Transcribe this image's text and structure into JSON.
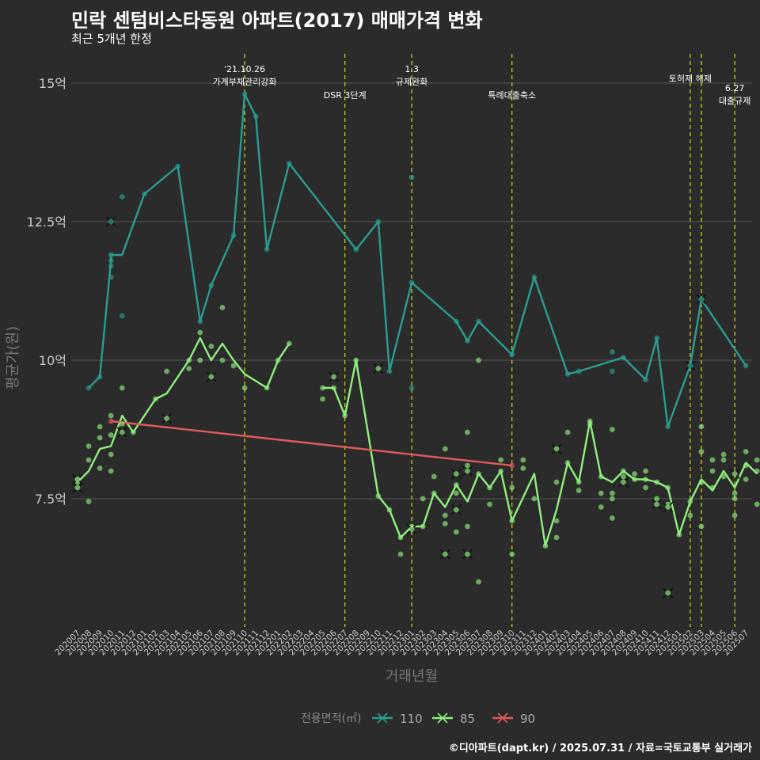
{
  "title": "민락 센텀비스타동원 아파트(2017) 매매가격 변화",
  "subtitle": "최근 5개년 한정",
  "caption": "©디아파트(dapt.kr) / 2025.07.31 / 자료=국토교통부 실거래가",
  "chart_data": {
    "type": "line",
    "xlabel": "거래년월",
    "ylabel": "평균가(원)",
    "ylim": [
      5.3,
      15.8
    ],
    "yticks": [
      {
        "value": 7.5,
        "label": "7.5억"
      },
      {
        "value": 10,
        "label": "10억"
      },
      {
        "value": 12.5,
        "label": "12.5억"
      },
      {
        "value": 15,
        "label": "15억"
      }
    ],
    "categories": [
      "202007",
      "202008",
      "202009",
      "202010",
      "202011",
      "202012",
      "202101",
      "202102",
      "202103",
      "202104",
      "202105",
      "202106",
      "202107",
      "202108",
      "202109",
      "202110",
      "202111",
      "202112",
      "202201",
      "202202",
      "202203",
      "202204",
      "202205",
      "202206",
      "202207",
      "202208",
      "202209",
      "202210",
      "202211",
      "202212",
      "202301",
      "202302",
      "202303",
      "202304",
      "202305",
      "202306",
      "202307",
      "202308",
      "202309",
      "202310",
      "202311",
      "202312",
      "202401",
      "202402",
      "202403",
      "202404",
      "202405",
      "202406",
      "202407",
      "202408",
      "202409",
      "202410",
      "202411",
      "202412",
      "202501",
      "202502",
      "202503",
      "202504",
      "202505",
      "202506",
      "202507"
    ],
    "legend": {
      "title": "전용면적(㎡)",
      "position": "bottom"
    },
    "grid": true,
    "events": [
      {
        "date": "202110",
        "label": "'21.10.26\n가계부채관리강화",
        "pos": "top"
      },
      {
        "date": "202207",
        "label": "DSR 3단계",
        "pos": "low"
      },
      {
        "date": "202301",
        "label": "1.3\n규제완화",
        "pos": "top"
      },
      {
        "date": "202310",
        "label": "특례대출축소",
        "pos": "low"
      },
      {
        "date": "202502",
        "label": "토허제 해제",
        "pos": "mid"
      },
      {
        "date": "202503",
        "label": "",
        "pos": "mid"
      },
      {
        "date": "202506",
        "label": "6.27\n대출규제",
        "pos": "low2"
      }
    ],
    "series": [
      {
        "name": "110",
        "color": "#2a9d8f",
        "line": [
          [
            "202008",
            9.5
          ],
          [
            "202009",
            9.7
          ],
          [
            "202010",
            11.8
          ],
          [
            "202010",
            11.9
          ],
          [
            "202011",
            11.9
          ],
          [
            "202101",
            13.0
          ],
          [
            "202104",
            13.5
          ],
          [
            "202106",
            10.7
          ],
          [
            "202107",
            11.35
          ],
          [
            "202109",
            12.25
          ],
          [
            "202110",
            14.8
          ],
          [
            "202111",
            14.4
          ],
          [
            "202112",
            12.0
          ],
          [
            "202202",
            13.55
          ],
          [
            "202208",
            12.0
          ],
          [
            "202210",
            12.5
          ],
          [
            "202211",
            9.8
          ],
          [
            "202301",
            11.4
          ],
          [
            "202305",
            10.7
          ],
          [
            "202306",
            10.35
          ],
          [
            "202307",
            10.7
          ],
          [
            "202310",
            10.1
          ],
          [
            "202312",
            11.5
          ],
          [
            "202403",
            9.75
          ],
          [
            "202404",
            9.8
          ],
          [
            "202408",
            10.05
          ],
          [
            "202410",
            9.65
          ],
          [
            "202411",
            10.4
          ],
          [
            "202412",
            8.8
          ],
          [
            "202502",
            9.9
          ],
          [
            "202503",
            11.1
          ],
          [
            "202507",
            9.9
          ]
        ],
        "points": [
          [
            "202008",
            9.5
          ],
          [
            "202009",
            9.7
          ],
          [
            "202010",
            11.8
          ],
          [
            "202010",
            11.7
          ],
          [
            "202010",
            11.5
          ],
          [
            "202010",
            11.9
          ],
          [
            "202011",
            12.95
          ],
          [
            "202011",
            10.8
          ],
          [
            "202101",
            13.0
          ],
          [
            "202104",
            13.5
          ],
          [
            "202106",
            10.7
          ],
          [
            "202107",
            11.35
          ],
          [
            "202109",
            12.25
          ],
          [
            "202110",
            14.8
          ],
          [
            "202111",
            14.4
          ],
          [
            "202112",
            12.0
          ],
          [
            "202202",
            13.55
          ],
          [
            "202208",
            12.0
          ],
          [
            "202210",
            12.5
          ],
          [
            "202211",
            9.8
          ],
          [
            "202301",
            13.3
          ],
          [
            "202301",
            9.5
          ],
          [
            "202301",
            11.4
          ],
          [
            "202305",
            10.7
          ],
          [
            "202306",
            10.35
          ],
          [
            "202307",
            10.7
          ],
          [
            "202310",
            10.1
          ],
          [
            "202312",
            11.5
          ],
          [
            "202403",
            9.75
          ],
          [
            "202404",
            9.8
          ],
          [
            "202407",
            10.15
          ],
          [
            "202407",
            9.8
          ],
          [
            "202408",
            10.05
          ],
          [
            "202410",
            9.65
          ],
          [
            "202411",
            10.4
          ],
          [
            "202412",
            8.8
          ],
          [
            "202502",
            9.9
          ],
          [
            "202503",
            11.1
          ],
          [
            "202507",
            9.9
          ]
        ],
        "crosses": [
          [
            "202010",
            12.5
          ],
          [
            "202502",
            9.9
          ],
          [
            "202503",
            11.1
          ]
        ]
      },
      {
        "name": "85",
        "color": "#90ee7e",
        "line": [
          [
            "202007",
            7.8
          ],
          [
            "202008",
            8.0
          ],
          [
            "202009",
            8.4
          ],
          [
            "202010",
            8.45
          ],
          [
            "202011",
            9.0
          ],
          [
            "202012",
            8.7
          ],
          [
            "202102",
            9.3
          ],
          [
            "202103",
            9.4
          ],
          [
            "202105",
            10.0
          ],
          [
            "202106",
            10.4
          ],
          [
            "202107",
            10.0
          ],
          [
            "202108",
            10.3
          ],
          [
            "202109",
            10.0
          ],
          [
            "202110",
            9.75
          ],
          [
            "202112",
            9.5
          ],
          [
            "202201",
            10.0
          ],
          [
            "202202",
            10.3
          ]
        ],
        "line2": [
          [
            "202205",
            9.5
          ],
          [
            "202206",
            9.5
          ],
          [
            "202207",
            9.0
          ],
          [
            "202208",
            10.0
          ],
          [
            "202210",
            7.55
          ],
          [
            "202211",
            7.3
          ],
          [
            "202212",
            6.8
          ],
          [
            "202301",
            7.0
          ],
          [
            "202302",
            7.0
          ],
          [
            "202303",
            7.6
          ],
          [
            "202304",
            7.35
          ],
          [
            "202305",
            7.75
          ],
          [
            "202306",
            7.45
          ],
          [
            "202307",
            7.95
          ],
          [
            "202308",
            7.7
          ],
          [
            "202309",
            8.0
          ],
          [
            "202310",
            7.1
          ],
          [
            "202312",
            7.95
          ],
          [
            "202401",
            6.65
          ],
          [
            "202402",
            7.3
          ],
          [
            "202403",
            8.15
          ],
          [
            "202404",
            7.8
          ],
          [
            "202405",
            8.9
          ],
          [
            "202406",
            7.9
          ],
          [
            "202407",
            7.8
          ],
          [
            "202408",
            8.0
          ],
          [
            "202409",
            7.85
          ],
          [
            "202410",
            7.85
          ],
          [
            "202411",
            7.8
          ],
          [
            "202412",
            7.7
          ],
          [
            "202501",
            6.85
          ],
          [
            "202502",
            7.45
          ],
          [
            "202503",
            7.85
          ],
          [
            "202504",
            7.65
          ],
          [
            "202505",
            8.0
          ],
          [
            "202506",
            7.7
          ],
          [
            "202507",
            8.15
          ],
          [
            "202508",
            7.95
          ]
        ],
        "points": [
          [
            "202007",
            7.8
          ],
          [
            "202007",
            7.85
          ],
          [
            "202008",
            7.45
          ],
          [
            "202008",
            8.2
          ],
          [
            "202008",
            8.45
          ],
          [
            "202009",
            8.05
          ],
          [
            "202009",
            8.8
          ],
          [
            "202009",
            8.6
          ],
          [
            "202010",
            8.0
          ],
          [
            "202010",
            9.0
          ],
          [
            "202010",
            8.65
          ],
          [
            "202010",
            8.3
          ],
          [
            "202011",
            9.5
          ],
          [
            "202011",
            8.85
          ],
          [
            "202012",
            8.7
          ],
          [
            "202102",
            9.3
          ],
          [
            "202103",
            9.8
          ],
          [
            "202105",
            10.0
          ],
          [
            "202105",
            9.85
          ],
          [
            "202106",
            10.5
          ],
          [
            "202106",
            10.0
          ],
          [
            "202107",
            10.25
          ],
          [
            "202108",
            10.95
          ],
          [
            "202108",
            10.0
          ],
          [
            "202109",
            9.9
          ],
          [
            "202110",
            9.5
          ],
          [
            "202112",
            9.5
          ],
          [
            "202201",
            10.0
          ],
          [
            "202202",
            10.3
          ],
          [
            "202205",
            9.5
          ],
          [
            "202205",
            9.3
          ],
          [
            "202206",
            9.5
          ],
          [
            "202207",
            9.0
          ],
          [
            "202208",
            10.0
          ],
          [
            "202210",
            7.55
          ],
          [
            "202211",
            7.3
          ],
          [
            "202212",
            6.5
          ],
          [
            "202212",
            6.8
          ],
          [
            "202301",
            7.0
          ],
          [
            "202302",
            7.5
          ],
          [
            "202302",
            7.0
          ],
          [
            "202303",
            7.9
          ],
          [
            "202303",
            7.6
          ],
          [
            "202304",
            7.2
          ],
          [
            "202304",
            8.4
          ],
          [
            "202304",
            7.05
          ],
          [
            "202305",
            6.9
          ],
          [
            "202305",
            7.6
          ],
          [
            "202305",
            7.75
          ],
          [
            "202306",
            8.7
          ],
          [
            "202306",
            8.1
          ],
          [
            "202306",
            7.0
          ],
          [
            "202307",
            7.95
          ],
          [
            "202307",
            10.0
          ],
          [
            "202307",
            6.0
          ],
          [
            "202308",
            7.4
          ],
          [
            "202308",
            7.7
          ],
          [
            "202309",
            8.2
          ],
          [
            "202309",
            8.0
          ],
          [
            "202310",
            6.5
          ],
          [
            "202310",
            7.7
          ],
          [
            "202310",
            7.1
          ],
          [
            "202311",
            8.2
          ],
          [
            "202311",
            8.05
          ],
          [
            "202312",
            7.5
          ],
          [
            "202401",
            6.65
          ],
          [
            "202402",
            7.8
          ],
          [
            "202402",
            6.8
          ],
          [
            "202402",
            7.1
          ],
          [
            "202403",
            8.7
          ],
          [
            "202403",
            8.15
          ],
          [
            "202404",
            7.8
          ],
          [
            "202404",
            7.65
          ],
          [
            "202405",
            8.9
          ],
          [
            "202405",
            8.85
          ],
          [
            "202406",
            7.6
          ],
          [
            "202406",
            7.9
          ],
          [
            "202406",
            7.35
          ],
          [
            "202407",
            8.75
          ],
          [
            "202407",
            7.5
          ],
          [
            "202407",
            7.15
          ],
          [
            "202407",
            7.6
          ],
          [
            "202408",
            8.0
          ],
          [
            "202408",
            7.9
          ],
          [
            "202409",
            7.95
          ],
          [
            "202409",
            7.85
          ],
          [
            "202410",
            7.85
          ],
          [
            "202410",
            8.0
          ],
          [
            "202410",
            7.7
          ],
          [
            "202411",
            7.8
          ],
          [
            "202411",
            7.5
          ],
          [
            "202412",
            7.7
          ],
          [
            "202412",
            7.4
          ],
          [
            "202501",
            6.85
          ],
          [
            "202502",
            7.45
          ],
          [
            "202502",
            7.2
          ],
          [
            "202503",
            8.8
          ],
          [
            "202503",
            7.0
          ],
          [
            "202503",
            8.35
          ],
          [
            "202503",
            7.8
          ],
          [
            "202504",
            8.2
          ],
          [
            "202504",
            8.0
          ],
          [
            "202504",
            7.7
          ],
          [
            "202505",
            8.3
          ],
          [
            "202505",
            8.2
          ],
          [
            "202505",
            7.9
          ],
          [
            "202506",
            7.6
          ],
          [
            "202506",
            7.5
          ],
          [
            "202506",
            7.2
          ],
          [
            "202507",
            8.35
          ],
          [
            "202507",
            8.1
          ],
          [
            "202507",
            7.85
          ],
          [
            "202508",
            8.2
          ],
          [
            "202508",
            8.0
          ],
          [
            "202508",
            7.4
          ]
        ],
        "crosses": [
          [
            "202007",
            7.85
          ],
          [
            "202007",
            7.7
          ],
          [
            "202011",
            8.7
          ],
          [
            "202103",
            8.95
          ],
          [
            "202107",
            9.7
          ],
          [
            "202206",
            9.7
          ],
          [
            "202210",
            9.85
          ],
          [
            "202301",
            6.95
          ],
          [
            "202304",
            6.5
          ],
          [
            "202305",
            7.95
          ],
          [
            "202305",
            7.3
          ],
          [
            "202306",
            8.0
          ],
          [
            "202306",
            6.5
          ],
          [
            "202402",
            8.4
          ],
          [
            "202408",
            7.8
          ],
          [
            "202411",
            7.4
          ],
          [
            "202412",
            7.35
          ],
          [
            "202412",
            5.8
          ],
          [
            "202506",
            7.95
          ]
        ]
      },
      {
        "name": "90",
        "color": "#e05a5a",
        "line": [
          [
            "202010",
            8.9
          ],
          [
            "202310",
            8.1
          ]
        ],
        "points": [
          [
            "202010",
            8.9
          ],
          [
            "202310",
            8.1
          ]
        ],
        "crosses": []
      }
    ]
  }
}
